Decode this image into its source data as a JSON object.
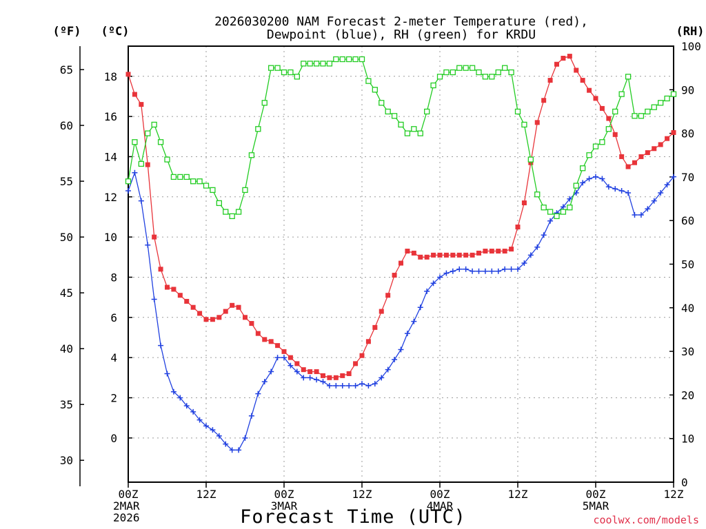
{
  "chart_data": {
    "type": "line",
    "title_line1": "2026030200 NAM Forecast 2-meter Temperature (red),",
    "title_line2": "Dewpoint (blue), RH (green) for KRDU",
    "xlabel": "Forecast Time (UTC)",
    "unit_f": "(ºF)",
    "unit_c": "(ºC)",
    "unit_rh": "(RH)",
    "watermark": "coolwx.com/models",
    "x_ticks": [
      {
        "h": 0,
        "lines": [
          "00Z",
          "2MAR",
          "2026"
        ]
      },
      {
        "h": 12,
        "lines": [
          "12Z"
        ]
      },
      {
        "h": 24,
        "lines": [
          "00Z",
          "3MAR"
        ]
      },
      {
        "h": 36,
        "lines": [
          "12Z"
        ]
      },
      {
        "h": 48,
        "lines": [
          "00Z",
          "4MAR"
        ]
      },
      {
        "h": 60,
        "lines": [
          "12Z"
        ]
      },
      {
        "h": 72,
        "lines": [
          "00Z",
          "5MAR"
        ]
      },
      {
        "h": 84,
        "lines": [
          "12Z"
        ]
      }
    ],
    "xlim": [
      0,
      84
    ],
    "ylim_c": [
      -2.2,
      19.5
    ],
    "ylim_rh": [
      0,
      100
    ],
    "c_ticks": [
      "0",
      "2",
      "4",
      "6",
      "8",
      "10",
      "12",
      "14",
      "16",
      "18"
    ],
    "f_ticks": [
      "30",
      "35",
      "40",
      "45",
      "50",
      "55",
      "60",
      "65"
    ],
    "rh_ticks": [
      "0",
      "10",
      "20",
      "30",
      "40",
      "50",
      "60",
      "70",
      "80",
      "90",
      "100"
    ],
    "series": [
      {
        "name": "Temperature",
        "units": "C",
        "color": "#e8343a",
        "marker": "filled-square",
        "x": [
          0,
          1,
          2,
          3,
          4,
          5,
          6,
          7,
          8,
          9,
          10,
          11,
          12,
          13,
          14,
          15,
          16,
          17,
          18,
          19,
          20,
          21,
          22,
          23,
          24,
          25,
          26,
          27,
          28,
          29,
          30,
          31,
          32,
          33,
          34,
          35,
          36,
          37,
          38,
          39,
          40,
          41,
          42,
          43,
          44,
          45,
          46,
          47,
          48,
          49,
          50,
          51,
          52,
          53,
          54,
          55,
          56,
          57,
          58,
          59,
          60,
          61,
          62,
          63,
          64,
          65,
          66,
          67,
          68,
          69,
          70,
          71,
          72,
          73,
          74,
          75,
          76,
          77,
          78,
          79,
          80,
          81,
          82,
          83,
          84
        ],
        "values": [
          18.1,
          17.1,
          16.6,
          13.6,
          10.0,
          8.4,
          7.5,
          7.4,
          7.1,
          6.8,
          6.5,
          6.2,
          5.9,
          5.9,
          6.0,
          6.3,
          6.6,
          6.5,
          6.0,
          5.7,
          5.2,
          4.9,
          4.8,
          4.6,
          4.3,
          4.0,
          3.7,
          3.4,
          3.3,
          3.3,
          3.1,
          3.0,
          3.0,
          3.1,
          3.2,
          3.7,
          4.1,
          4.8,
          5.5,
          6.3,
          7.1,
          8.1,
          8.7,
          9.3,
          9.2,
          9.0,
          9.0,
          9.1,
          9.1,
          9.1,
          9.1,
          9.1,
          9.1,
          9.1,
          9.2,
          9.3,
          9.3,
          9.3,
          9.3,
          9.4,
          10.5,
          11.7,
          13.7,
          15.7,
          16.8,
          17.8,
          18.6,
          18.9,
          19.0,
          18.3,
          17.8,
          17.3,
          16.9,
          16.4,
          15.9,
          15.1,
          14.0,
          13.5,
          13.7,
          14.0,
          14.2,
          14.4,
          14.6,
          14.9,
          15.2
        ]
      },
      {
        "name": "Dewpoint",
        "units": "C",
        "color": "#2040e0",
        "marker": "plus",
        "x": [
          0,
          1,
          2,
          3,
          4,
          5,
          6,
          7,
          8,
          9,
          10,
          11,
          12,
          13,
          14,
          15,
          16,
          17,
          18,
          19,
          20,
          21,
          22,
          23,
          24,
          25,
          26,
          27,
          28,
          29,
          30,
          31,
          32,
          33,
          34,
          35,
          36,
          37,
          38,
          39,
          40,
          41,
          42,
          43,
          44,
          45,
          46,
          47,
          48,
          49,
          50,
          51,
          52,
          53,
          54,
          55,
          56,
          57,
          58,
          59,
          60,
          61,
          62,
          63,
          64,
          65,
          66,
          67,
          68,
          69,
          70,
          71,
          72,
          73,
          74,
          75,
          76,
          77,
          78,
          79,
          80,
          81,
          82,
          83,
          84
        ],
        "values": [
          12.3,
          13.2,
          11.8,
          9.6,
          6.9,
          4.6,
          3.2,
          2.3,
          2.0,
          1.6,
          1.3,
          0.9,
          0.6,
          0.4,
          0.1,
          -0.3,
          -0.6,
          -0.6,
          0.0,
          1.1,
          2.2,
          2.8,
          3.3,
          4.0,
          4.0,
          3.6,
          3.3,
          3.0,
          3.0,
          2.9,
          2.8,
          2.6,
          2.6,
          2.6,
          2.6,
          2.6,
          2.7,
          2.6,
          2.7,
          3.0,
          3.4,
          3.9,
          4.4,
          5.2,
          5.8,
          6.5,
          7.3,
          7.7,
          8.0,
          8.2,
          8.3,
          8.4,
          8.4,
          8.3,
          8.3,
          8.3,
          8.3,
          8.3,
          8.4,
          8.4,
          8.4,
          8.7,
          9.1,
          9.5,
          10.1,
          10.8,
          11.2,
          11.5,
          11.9,
          12.2,
          12.7,
          12.9,
          13.0,
          12.9,
          12.5,
          12.4,
          12.3,
          12.2,
          11.1,
          11.1,
          11.4,
          11.8,
          12.2,
          12.6,
          13.0
        ]
      },
      {
        "name": "RH",
        "units": "%",
        "color": "#22cc22",
        "marker": "open-square",
        "x": [
          0,
          1,
          2,
          3,
          4,
          5,
          6,
          7,
          8,
          9,
          10,
          11,
          12,
          13,
          14,
          15,
          16,
          17,
          18,
          19,
          20,
          21,
          22,
          23,
          24,
          25,
          26,
          27,
          28,
          29,
          30,
          31,
          32,
          33,
          34,
          35,
          36,
          37,
          38,
          39,
          40,
          41,
          42,
          43,
          44,
          45,
          46,
          47,
          48,
          49,
          50,
          51,
          52,
          53,
          54,
          55,
          56,
          57,
          58,
          59,
          60,
          61,
          62,
          63,
          64,
          65,
          66,
          67,
          68,
          69,
          70,
          71,
          72,
          73,
          74,
          75,
          76,
          77,
          78,
          79,
          80,
          81,
          82,
          83,
          84
        ],
        "values": [
          69,
          78,
          73,
          80,
          82,
          78,
          74,
          70,
          70,
          70,
          69,
          69,
          68,
          67,
          64,
          62,
          61,
          62,
          67,
          75,
          81,
          87,
          95,
          95,
          94,
          94,
          93,
          96,
          96,
          96,
          96,
          96,
          97,
          97,
          97,
          97,
          97,
          92,
          90,
          87,
          85,
          84,
          82,
          80,
          81,
          80,
          85,
          91,
          93,
          94,
          94,
          95,
          95,
          95,
          94,
          93,
          93,
          94,
          95,
          94,
          85,
          82,
          74,
          66,
          63,
          62,
          61,
          62,
          63,
          68,
          72,
          75,
          77,
          78,
          81,
          85,
          89,
          93,
          84,
          84,
          85,
          86,
          87,
          88,
          89
        ]
      }
    ]
  }
}
